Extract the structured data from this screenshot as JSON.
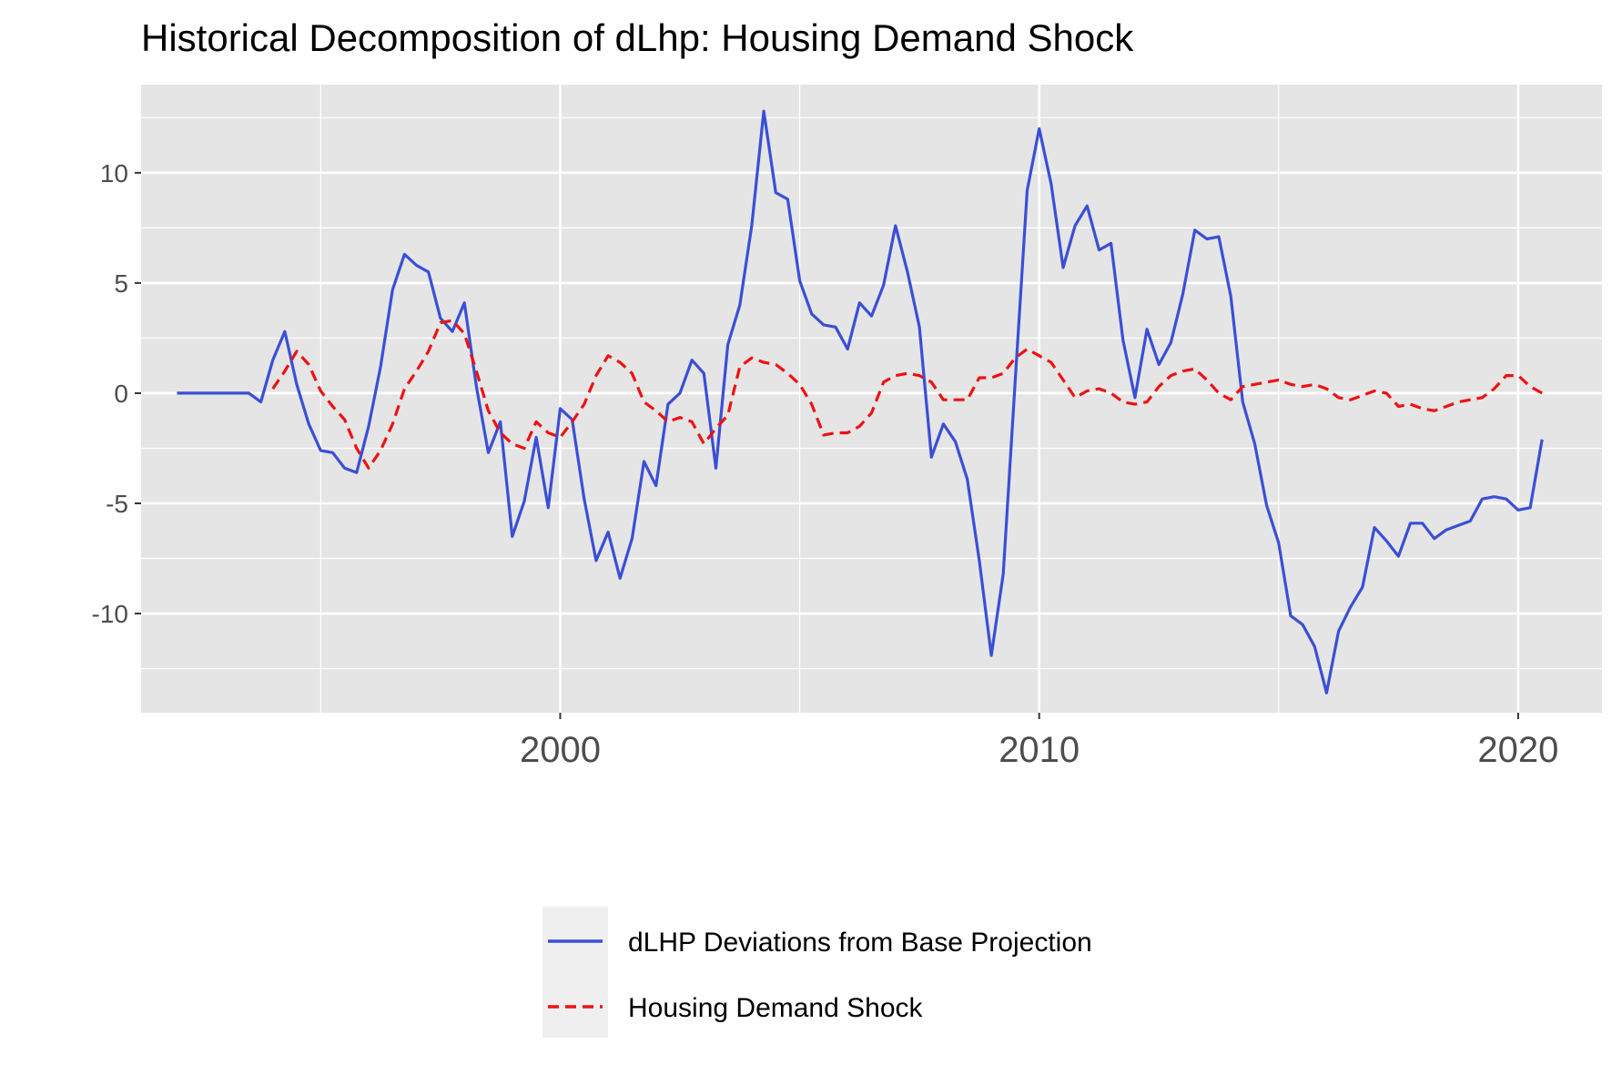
{
  "chart_data": {
    "type": "line",
    "title": "Historical Decomposition of dLhp: Housing Demand Shock",
    "xlabel": "",
    "ylabel": "",
    "xlim": [
      1991.25,
      2021.75
    ],
    "ylim": [
      -14.5,
      14.0
    ],
    "x_ticks": [
      2000,
      2010,
      2020
    ],
    "x_tick_labels": [
      "2000",
      "2010",
      "2020"
    ],
    "y_ticks": [
      -10,
      -5,
      0,
      5,
      10
    ],
    "y_tick_labels": [
      "-10",
      "-5",
      "0",
      "5",
      "10"
    ],
    "grid": true,
    "legend_position": "bottom",
    "colors": {
      "panel": "#e5e5e5",
      "grid": "#ffffff",
      "legend_key_bg": "#efefef"
    },
    "series": [
      {
        "name": "dLHP Deviations from Base Projection",
        "color": "#3a4fd6",
        "dash": "solid",
        "x": [
          1992.0,
          1992.25,
          1992.5,
          1992.75,
          1993.0,
          1993.25,
          1993.5,
          1993.75,
          1994.0,
          1994.25,
          1994.5,
          1994.75,
          1995.0,
          1995.25,
          1995.5,
          1995.75,
          1996.0,
          1996.25,
          1996.5,
          1996.75,
          1997.0,
          1997.25,
          1997.5,
          1997.75,
          1998.0,
          1998.25,
          1998.5,
          1998.75,
          1999.0,
          1999.25,
          1999.5,
          1999.75,
          2000.0,
          2000.25,
          2000.5,
          2000.75,
          2001.0,
          2001.25,
          2001.5,
          2001.75,
          2002.0,
          2002.25,
          2002.5,
          2002.75,
          2003.0,
          2003.25,
          2003.5,
          2003.75,
          2004.0,
          2004.25,
          2004.5,
          2004.75,
          2005.0,
          2005.25,
          2005.5,
          2005.75,
          2006.0,
          2006.25,
          2006.5,
          2006.75,
          2007.0,
          2007.25,
          2007.5,
          2007.75,
          2008.0,
          2008.25,
          2008.5,
          2008.75,
          2009.0,
          2009.25,
          2009.5,
          2009.75,
          2010.0,
          2010.25,
          2010.5,
          2010.75,
          2011.0,
          2011.25,
          2011.5,
          2011.75,
          2012.0,
          2012.25,
          2012.5,
          2012.75,
          2013.0,
          2013.25,
          2013.5,
          2013.75,
          2014.0,
          2014.25,
          2014.5,
          2014.75,
          2015.0,
          2015.25,
          2015.5,
          2015.75,
          2016.0,
          2016.25,
          2016.5,
          2016.75,
          2017.0,
          2017.25,
          2017.5,
          2017.75,
          2018.0,
          2018.25,
          2018.5,
          2018.75,
          2019.0,
          2019.25,
          2019.5,
          2019.75,
          2020.0,
          2020.25,
          2020.5
        ],
        "y": [
          0.0,
          0.0,
          0.0,
          0.0,
          0.0,
          0.0,
          0.0,
          -0.4,
          1.5,
          2.8,
          0.4,
          -1.4,
          -2.6,
          -2.7,
          -3.4,
          -3.6,
          -1.5,
          1.2,
          4.7,
          6.3,
          5.8,
          5.5,
          3.4,
          2.8,
          4.1,
          0.3,
          -2.7,
          -1.3,
          -6.5,
          -4.9,
          -2.0,
          -5.2,
          -0.7,
          -1.2,
          -4.8,
          -7.6,
          -6.3,
          -8.4,
          -6.6,
          -3.1,
          -4.2,
          -0.5,
          0.0,
          1.5,
          0.9,
          -3.4,
          2.2,
          4.0,
          7.6,
          12.8,
          9.1,
          8.8,
          5.1,
          3.6,
          3.1,
          3.0,
          2.0,
          4.1,
          3.5,
          4.9,
          7.6,
          5.5,
          3.0,
          -2.9,
          -1.4,
          -2.2,
          -3.9,
          -7.6,
          -11.9,
          -8.2,
          0.6,
          9.2,
          12.0,
          9.5,
          5.7,
          7.6,
          8.5,
          6.5,
          6.8,
          2.4,
          -0.2,
          2.9,
          1.3,
          2.3,
          4.5,
          7.4,
          7.0,
          7.1,
          4.4,
          -0.4,
          -2.3,
          -5.1,
          -6.8,
          -10.1,
          -10.5,
          -11.5,
          -13.6,
          -10.8,
          -9.7,
          -8.8,
          -6.1,
          -6.7,
          -7.4,
          -5.9,
          -5.9,
          -6.6,
          -6.2,
          -6.0,
          -5.8,
          -4.8,
          -4.7,
          -4.8,
          -5.3,
          -5.2,
          -2.1
        ]
      },
      {
        "name": "Housing Demand Shock",
        "color": "#ee1111",
        "dash": "dashed",
        "x": [
          1994.0,
          1994.25,
          1994.5,
          1994.75,
          1995.0,
          1995.25,
          1995.5,
          1995.75,
          1996.0,
          1996.25,
          1996.5,
          1996.75,
          1997.0,
          1997.25,
          1997.5,
          1997.75,
          1998.0,
          1998.25,
          1998.5,
          1998.75,
          1999.0,
          1999.25,
          1999.5,
          1999.75,
          2000.0,
          2000.25,
          2000.5,
          2000.75,
          2001.0,
          2001.25,
          2001.5,
          2001.75,
          2002.0,
          2002.25,
          2002.5,
          2002.75,
          2003.0,
          2003.25,
          2003.5,
          2003.75,
          2004.0,
          2004.25,
          2004.5,
          2004.75,
          2005.0,
          2005.25,
          2005.5,
          2005.75,
          2006.0,
          2006.25,
          2006.5,
          2006.75,
          2007.0,
          2007.25,
          2007.5,
          2007.75,
          2008.0,
          2008.25,
          2008.5,
          2008.75,
          2009.0,
          2009.25,
          2009.5,
          2009.75,
          2010.0,
          2010.25,
          2010.5,
          2010.75,
          2011.0,
          2011.25,
          2011.5,
          2011.75,
          2012.0,
          2012.25,
          2012.5,
          2012.75,
          2013.0,
          2013.25,
          2013.5,
          2013.75,
          2014.0,
          2014.25,
          2014.5,
          2014.75,
          2015.0,
          2015.25,
          2015.5,
          2015.75,
          2016.0,
          2016.25,
          2016.5,
          2016.75,
          2017.0,
          2017.25,
          2017.5,
          2017.75,
          2018.0,
          2018.25,
          2018.5,
          2018.75,
          2019.0,
          2019.25,
          2019.5,
          2019.75,
          2020.0,
          2020.25,
          2020.5
        ],
        "y": [
          0.2,
          1.0,
          1.9,
          1.3,
          0.1,
          -0.6,
          -1.2,
          -2.5,
          -3.4,
          -2.6,
          -1.4,
          0.2,
          1.0,
          1.9,
          3.2,
          3.3,
          2.7,
          1.0,
          -0.8,
          -1.8,
          -2.3,
          -2.5,
          -1.3,
          -1.8,
          -2.0,
          -1.3,
          -0.5,
          0.8,
          1.7,
          1.4,
          0.9,
          -0.4,
          -0.8,
          -1.3,
          -1.1,
          -1.3,
          -2.3,
          -1.6,
          -1.0,
          1.2,
          1.6,
          1.4,
          1.3,
          0.9,
          0.4,
          -0.5,
          -1.9,
          -1.8,
          -1.8,
          -1.5,
          -0.9,
          0.5,
          0.8,
          0.9,
          0.8,
          0.5,
          -0.3,
          -0.3,
          -0.3,
          0.7,
          0.7,
          0.9,
          1.6,
          2.0,
          1.7,
          1.4,
          0.6,
          -0.2,
          0.1,
          0.2,
          0.0,
          -0.4,
          -0.5,
          -0.4,
          0.3,
          0.8,
          1.0,
          1.1,
          0.6,
          0.0,
          -0.3,
          0.3,
          0.4,
          0.5,
          0.6,
          0.4,
          0.3,
          0.4,
          0.2,
          -0.2,
          -0.3,
          -0.1,
          0.1,
          0.0,
          -0.6,
          -0.5,
          -0.7,
          -0.8,
          -0.6,
          -0.4,
          -0.3,
          -0.2,
          0.2,
          0.8,
          0.8,
          0.3,
          0.0
        ]
      }
    ]
  }
}
